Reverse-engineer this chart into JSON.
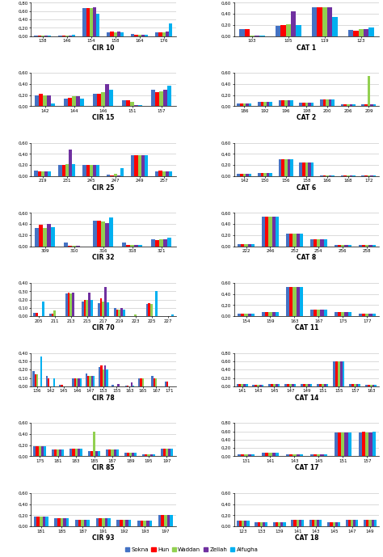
{
  "colors": [
    "#4472C4",
    "#FF0000",
    "#92D050",
    "#7030A0",
    "#00B0F0"
  ],
  "legend_labels": [
    "Sokna",
    "Hun",
    "Waddan",
    "Zellah",
    "Alfugha"
  ],
  "nrows": 8,
  "ncols": 2,
  "subplots": [
    {
      "title": "CIR 10",
      "ylim": [
        0.0,
        0.8
      ],
      "ytick_max": 0.8,
      "ytick_step": 0.2,
      "categories": [
        "138",
        "146",
        "154",
        "158",
        "164",
        "176"
      ],
      "values": [
        [
          0.01,
          0.01,
          0.67,
          0.1,
          0.05,
          0.1
        ],
        [
          0.01,
          0.02,
          0.68,
          0.11,
          0.04,
          0.1
        ],
        [
          0.01,
          0.01,
          0.68,
          0.1,
          0.04,
          0.1
        ],
        [
          0.01,
          0.01,
          0.7,
          0.11,
          0.04,
          0.12
        ],
        [
          0.01,
          0.04,
          0.53,
          0.1,
          0.03,
          0.3
        ]
      ]
    },
    {
      "title": "CAT 1",
      "ylim": [
        0.0,
        0.6
      ],
      "ytick_max": 0.6,
      "ytick_step": 0.2,
      "categories": [
        "103",
        "105",
        "119",
        "123"
      ],
      "values": [
        [
          0.13,
          0.19,
          0.52,
          0.11
        ],
        [
          0.13,
          0.2,
          0.52,
          0.1
        ],
        [
          0.01,
          0.22,
          0.52,
          0.12
        ],
        [
          0.01,
          0.45,
          0.52,
          0.12
        ],
        [
          0.01,
          0.2,
          0.35,
          0.16
        ]
      ]
    },
    {
      "title": "CIR 15",
      "ylim": [
        0.0,
        0.6
      ],
      "ytick_max": 0.6,
      "ytick_step": 0.2,
      "categories": [
        "142",
        "144",
        "146",
        "151",
        "157"
      ],
      "values": [
        [
          0.2,
          0.14,
          0.23,
          0.1,
          0.3
        ],
        [
          0.23,
          0.15,
          0.22,
          0.1,
          0.25
        ],
        [
          0.2,
          0.18,
          0.25,
          0.08,
          0.27
        ],
        [
          0.2,
          0.18,
          0.4,
          0.02,
          0.3
        ],
        [
          0.05,
          0.13,
          0.3,
          0.02,
          0.37
        ]
      ]
    },
    {
      "title": "CAT 2",
      "ylim": [
        0.0,
        0.6
      ],
      "ytick_max": 0.6,
      "ytick_step": 0.2,
      "categories": [
        "186",
        "192",
        "196",
        "198",
        "200",
        "206",
        "209"
      ],
      "values": [
        [
          0.05,
          0.08,
          0.1,
          0.06,
          0.12,
          0.04,
          0.04
        ],
        [
          0.05,
          0.08,
          0.1,
          0.06,
          0.12,
          0.04,
          0.04
        ],
        [
          0.05,
          0.08,
          0.1,
          0.06,
          0.12,
          0.04,
          0.55
        ],
        [
          0.05,
          0.08,
          0.1,
          0.06,
          0.12,
          0.04,
          0.04
        ],
        [
          0.05,
          0.08,
          0.1,
          0.06,
          0.12,
          0.04,
          0.04
        ]
      ]
    },
    {
      "title": "CIR 25",
      "ylim": [
        0.0,
        0.6
      ],
      "ytick_max": 0.6,
      "ytick_step": 0.2,
      "categories": [
        "219",
        "231",
        "245",
        "247",
        "249",
        "257"
      ],
      "values": [
        [
          0.1,
          0.2,
          0.2,
          0.03,
          0.38,
          0.08
        ],
        [
          0.08,
          0.2,
          0.2,
          0.02,
          0.38,
          0.1
        ],
        [
          0.08,
          0.22,
          0.2,
          0.04,
          0.38,
          0.08
        ],
        [
          0.08,
          0.48,
          0.2,
          0.02,
          0.38,
          0.08
        ],
        [
          0.08,
          0.22,
          0.2,
          0.15,
          0.38,
          0.08
        ]
      ]
    },
    {
      "title": "CAT 6",
      "ylim": [
        0.0,
        0.6
      ],
      "ytick_max": 0.6,
      "ytick_step": 0.2,
      "categories": [
        "142",
        "150",
        "156",
        "158",
        "166",
        "168",
        "172"
      ],
      "values": [
        [
          0.04,
          0.06,
          0.3,
          0.25,
          0.02,
          0.02,
          0.02
        ],
        [
          0.04,
          0.06,
          0.3,
          0.25,
          0.02,
          0.02,
          0.02
        ],
        [
          0.04,
          0.06,
          0.3,
          0.25,
          0.02,
          0.02,
          0.02
        ],
        [
          0.04,
          0.06,
          0.3,
          0.25,
          0.02,
          0.02,
          0.02
        ],
        [
          0.04,
          0.06,
          0.3,
          0.25,
          0.02,
          0.02,
          0.02
        ]
      ]
    },
    {
      "title": "CIR 32",
      "ylim": [
        0.0,
        0.6
      ],
      "ytick_max": 0.6,
      "ytick_step": 0.2,
      "categories": [
        "309",
        "310",
        "316",
        "318",
        "321"
      ],
      "values": [
        [
          0.33,
          0.07,
          0.46,
          0.07,
          0.12
        ],
        [
          0.38,
          0.01,
          0.46,
          0.02,
          0.11
        ],
        [
          0.33,
          0.01,
          0.45,
          0.02,
          0.12
        ],
        [
          0.4,
          0.01,
          0.42,
          0.02,
          0.12
        ],
        [
          0.35,
          0.0,
          0.52,
          0.02,
          0.15
        ]
      ]
    },
    {
      "title": "CAT 8",
      "ylim": [
        0.0,
        0.6
      ],
      "ytick_max": 0.6,
      "ytick_step": 0.2,
      "categories": [
        "222",
        "246",
        "252",
        "254",
        "256",
        "258"
      ],
      "values": [
        [
          0.04,
          0.53,
          0.22,
          0.12,
          0.02,
          0.02
        ],
        [
          0.04,
          0.53,
          0.22,
          0.12,
          0.02,
          0.02
        ],
        [
          0.04,
          0.53,
          0.22,
          0.12,
          0.02,
          0.02
        ],
        [
          0.04,
          0.53,
          0.22,
          0.12,
          0.02,
          0.02
        ],
        [
          0.04,
          0.53,
          0.22,
          0.12,
          0.02,
          0.02
        ]
      ]
    },
    {
      "title": "CIR 70",
      "ylim": [
        0.0,
        0.4
      ],
      "ytick_max": 0.4,
      "ytick_step": 0.1,
      "categories": [
        "205",
        "211",
        "213",
        "215",
        "217",
        "219",
        "223",
        "225",
        "227"
      ],
      "values": [
        [
          0.04,
          0.03,
          0.27,
          0.18,
          0.16,
          0.1,
          0.0,
          0.15,
          0.0
        ],
        [
          0.04,
          0.03,
          0.28,
          0.2,
          0.22,
          0.08,
          0.0,
          0.16,
          0.0
        ],
        [
          0.0,
          0.07,
          0.27,
          0.2,
          0.18,
          0.08,
          0.02,
          0.15,
          0.0
        ],
        [
          0.0,
          0.0,
          0.28,
          0.28,
          0.35,
          0.1,
          0.0,
          0.0,
          0.0
        ],
        [
          0.18,
          0.0,
          0.0,
          0.2,
          0.17,
          0.08,
          0.0,
          0.3,
          0.02
        ]
      ]
    },
    {
      "title": "CAT 11",
      "ylim": [
        0.0,
        0.6
      ],
      "ytick_max": 0.6,
      "ytick_step": 0.2,
      "categories": [
        "154",
        "159",
        "163",
        "167",
        "175",
        "177"
      ],
      "values": [
        [
          0.05,
          0.08,
          0.52,
          0.12,
          0.08,
          0.04
        ],
        [
          0.05,
          0.08,
          0.52,
          0.12,
          0.08,
          0.04
        ],
        [
          0.05,
          0.08,
          0.52,
          0.12,
          0.08,
          0.04
        ],
        [
          0.05,
          0.08,
          0.52,
          0.12,
          0.08,
          0.04
        ],
        [
          0.05,
          0.08,
          0.52,
          0.12,
          0.08,
          0.04
        ]
      ]
    },
    {
      "title": "CIR 78",
      "ylim": [
        0.0,
        0.4
      ],
      "ytick_max": 0.4,
      "ytick_step": 0.1,
      "categories": [
        "136",
        "142",
        "145",
        "146",
        "147",
        "153",
        "155",
        "163",
        "165",
        "167",
        "171"
      ],
      "values": [
        [
          0.18,
          0.12,
          0.02,
          0.1,
          0.15,
          0.23,
          0.02,
          0.01,
          0.1,
          0.12,
          0.06
        ],
        [
          0.14,
          0.1,
          0.02,
          0.1,
          0.12,
          0.25,
          0.0,
          0.01,
          0.1,
          0.1,
          0.06
        ],
        [
          0.14,
          0.0,
          0.0,
          0.1,
          0.12,
          0.2,
          0.0,
          0.0,
          0.1,
          0.1,
          0.0
        ],
        [
          0.0,
          0.0,
          0.0,
          0.1,
          0.12,
          0.25,
          0.03,
          0.05,
          0.0,
          0.0,
          0.0
        ],
        [
          0.36,
          0.1,
          0.0,
          0.1,
          0.12,
          0.2,
          0.0,
          0.01,
          0.0,
          0.0,
          0.0
        ]
      ]
    },
    {
      "title": "CAT 14",
      "ylim": [
        0.0,
        0.8
      ],
      "ytick_max": 0.8,
      "ytick_step": 0.2,
      "categories": [
        "141",
        "143",
        "145",
        "147",
        "149",
        "151",
        "155",
        "157",
        "163"
      ],
      "values": [
        [
          0.05,
          0.03,
          0.05,
          0.05,
          0.05,
          0.05,
          0.6,
          0.05,
          0.04
        ],
        [
          0.05,
          0.03,
          0.05,
          0.05,
          0.05,
          0.05,
          0.6,
          0.05,
          0.04
        ],
        [
          0.05,
          0.03,
          0.05,
          0.05,
          0.05,
          0.05,
          0.6,
          0.05,
          0.04
        ],
        [
          0.05,
          0.03,
          0.05,
          0.05,
          0.05,
          0.05,
          0.6,
          0.05,
          0.04
        ],
        [
          0.05,
          0.03,
          0.05,
          0.05,
          0.05,
          0.05,
          0.6,
          0.05,
          0.04
        ]
      ]
    },
    {
      "title": "CIR 85",
      "ylim": [
        0.0,
        0.6
      ],
      "ytick_max": 0.6,
      "ytick_step": 0.2,
      "categories": [
        "175",
        "181",
        "183",
        "185",
        "187",
        "189",
        "195",
        "197"
      ],
      "values": [
        [
          0.18,
          0.12,
          0.14,
          0.1,
          0.12,
          0.06,
          0.03,
          0.14
        ],
        [
          0.18,
          0.12,
          0.14,
          0.1,
          0.12,
          0.06,
          0.03,
          0.14
        ],
        [
          0.18,
          0.12,
          0.14,
          0.44,
          0.12,
          0.06,
          0.03,
          0.14
        ],
        [
          0.18,
          0.12,
          0.14,
          0.1,
          0.12,
          0.06,
          0.03,
          0.14
        ],
        [
          0.18,
          0.12,
          0.14,
          0.1,
          0.12,
          0.06,
          0.03,
          0.14
        ]
      ]
    },
    {
      "title": "CAT 17",
      "ylim": [
        0.0,
        0.8
      ],
      "ytick_max": 0.8,
      "ytick_step": 0.2,
      "categories": [
        "131",
        "141",
        "143",
        "145",
        "151",
        "157"
      ],
      "values": [
        [
          0.05,
          0.08,
          0.05,
          0.05,
          0.58,
          0.58
        ],
        [
          0.05,
          0.08,
          0.05,
          0.05,
          0.58,
          0.6
        ],
        [
          0.05,
          0.08,
          0.05,
          0.05,
          0.58,
          0.58
        ],
        [
          0.05,
          0.08,
          0.05,
          0.05,
          0.58,
          0.58
        ],
        [
          0.05,
          0.08,
          0.05,
          0.05,
          0.58,
          0.6
        ]
      ]
    },
    {
      "title": "CIR 93",
      "ylim": [
        0.0,
        0.6
      ],
      "ytick_max": 0.6,
      "ytick_step": 0.2,
      "categories": [
        "181",
        "185",
        "187",
        "191",
        "192",
        "193",
        "197"
      ],
      "values": [
        [
          0.18,
          0.15,
          0.12,
          0.15,
          0.12,
          0.1,
          0.2
        ],
        [
          0.18,
          0.15,
          0.12,
          0.15,
          0.12,
          0.1,
          0.2
        ],
        [
          0.18,
          0.15,
          0.12,
          0.15,
          0.12,
          0.1,
          0.2
        ],
        [
          0.18,
          0.15,
          0.12,
          0.15,
          0.12,
          0.1,
          0.2
        ],
        [
          0.18,
          0.15,
          0.12,
          0.15,
          0.12,
          0.1,
          0.2
        ]
      ]
    },
    {
      "title": "CAT 18",
      "ylim": [
        0.0,
        0.6
      ],
      "ytick_max": 0.6,
      "ytick_step": 0.2,
      "categories": [
        "123",
        "133",
        "139",
        "141",
        "143",
        "145",
        "147",
        "149"
      ],
      "values": [
        [
          0.1,
          0.08,
          0.08,
          0.12,
          0.12,
          0.08,
          0.12,
          0.12
        ],
        [
          0.1,
          0.08,
          0.08,
          0.12,
          0.12,
          0.08,
          0.12,
          0.12
        ],
        [
          0.1,
          0.08,
          0.08,
          0.12,
          0.12,
          0.08,
          0.12,
          0.12
        ],
        [
          0.1,
          0.08,
          0.08,
          0.12,
          0.12,
          0.08,
          0.12,
          0.12
        ],
        [
          0.1,
          0.08,
          0.08,
          0.12,
          0.12,
          0.08,
          0.12,
          0.12
        ]
      ]
    }
  ]
}
